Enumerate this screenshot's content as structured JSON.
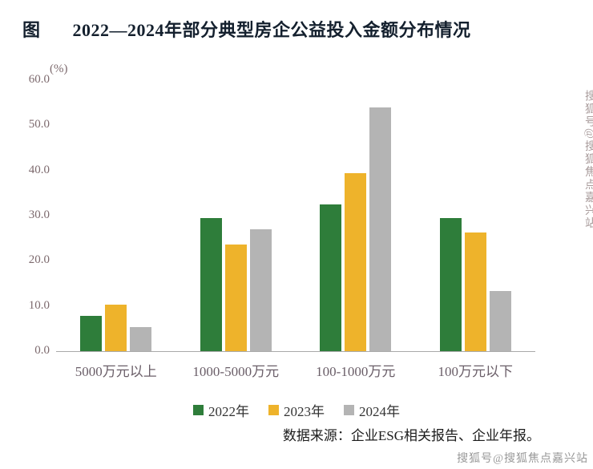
{
  "header": {
    "figure_label": "图"
  },
  "chart_data": {
    "type": "bar",
    "title": "2022—2024年部分典型房企公益投入金额分布情况",
    "ylabel": "(%)",
    "ylim": [
      0,
      60
    ],
    "yticks": [
      "60.0",
      "50.0",
      "40.0",
      "30.0",
      "20.0",
      "10.0",
      "0.0"
    ],
    "categories": [
      "5000万元以上",
      "1000-5000万元",
      "100-1000万元",
      "100万元以下"
    ],
    "series": [
      {
        "name": "2022年",
        "color": "#2e7d3a",
        "values": [
          7.8,
          29.5,
          32.4,
          29.5
        ]
      },
      {
        "name": "2023年",
        "color": "#eeb32b",
        "values": [
          10.3,
          23.6,
          39.4,
          26.2
        ]
      },
      {
        "name": "2024年",
        "color": "#b4b4b4",
        "values": [
          5.4,
          26.9,
          53.9,
          13.3
        ]
      }
    ],
    "legend_position": "bottom",
    "grid": false
  },
  "footer": {
    "source": "数据来源：企业ESG相关报告、企业年报。"
  },
  "watermarks": {
    "vertical": "搜狐号@搜狐焦点嘉兴站",
    "bottom": "搜狐号@搜狐焦点嘉兴站"
  }
}
